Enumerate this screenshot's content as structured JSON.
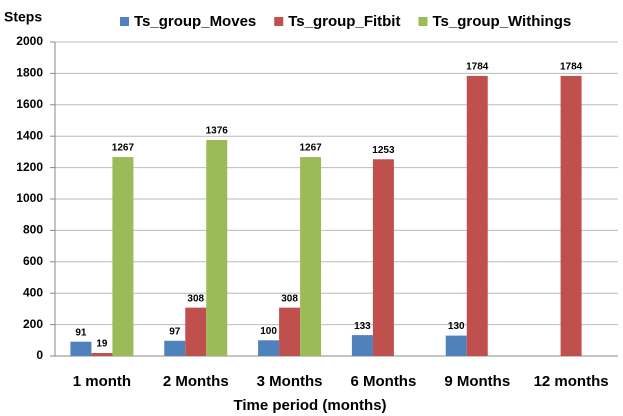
{
  "chart_data": {
    "type": "bar",
    "y_label": "Steps",
    "x_label": "Time period (months)",
    "categories": [
      "1 month",
      "2 Months",
      "3 Months",
      "6 Months",
      "9 Months",
      "12 months"
    ],
    "series": [
      {
        "name": "Ts_group_Moves",
        "color": "#4f81bd",
        "values": [
          91,
          97,
          100,
          133,
          130,
          null
        ]
      },
      {
        "name": "Ts_group_Fitbit",
        "color": "#c0504d",
        "values": [
          19,
          308,
          308,
          1253,
          1784,
          1784
        ]
      },
      {
        "name": "Ts_group_Withings",
        "color": "#9bbb59",
        "values": [
          1267,
          1376,
          1267,
          null,
          null,
          null
        ]
      }
    ],
    "ylim": [
      0,
      2000
    ],
    "yticks": [
      0,
      200,
      400,
      600,
      800,
      1000,
      1200,
      1400,
      1600,
      1800,
      2000
    ],
    "grid": true
  }
}
